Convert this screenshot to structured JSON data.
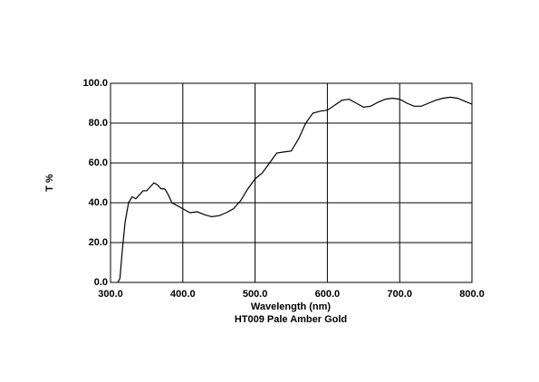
{
  "chart_data": {
    "type": "line",
    "title": "HT009 Pale Amber Gold",
    "xlabel": "Wavelength (nm)",
    "ylabel": "T %",
    "xlim": [
      300,
      800
    ],
    "ylim": [
      0,
      100
    ],
    "xticks": [
      {
        "value": 300,
        "label": "300.0"
      },
      {
        "value": 400,
        "label": "400.0"
      },
      {
        "value": 500,
        "label": "500.0"
      },
      {
        "value": 600,
        "label": "600.0"
      },
      {
        "value": 700,
        "label": "700.0"
      },
      {
        "value": 800,
        "label": "800.0"
      }
    ],
    "yticks": [
      {
        "value": 0,
        "label": "0.0"
      },
      {
        "value": 20,
        "label": "20.0"
      },
      {
        "value": 40,
        "label": "40.0"
      },
      {
        "value": 60,
        "label": "60.0"
      },
      {
        "value": 80,
        "label": "80.0"
      },
      {
        "value": 100,
        "label": "100.0"
      }
    ],
    "grid": true,
    "color": "#000000",
    "x": [
      310,
      313,
      316,
      320,
      325,
      330,
      335,
      340,
      345,
      350,
      355,
      360,
      365,
      370,
      375,
      380,
      385,
      390,
      395,
      400,
      410,
      420,
      430,
      440,
      450,
      460,
      470,
      480,
      490,
      500,
      510,
      520,
      530,
      540,
      550,
      560,
      570,
      580,
      590,
      600,
      610,
      620,
      630,
      640,
      650,
      660,
      670,
      680,
      690,
      700,
      710,
      720,
      730,
      740,
      750,
      760,
      770,
      780,
      790,
      800
    ],
    "values": [
      0,
      2,
      15,
      30,
      40,
      43,
      42,
      44,
      46,
      46,
      48,
      50,
      49,
      47,
      47,
      44,
      40,
      39,
      38,
      37,
      35,
      35.5,
      34,
      33,
      33.5,
      35,
      37,
      41,
      47,
      52,
      55,
      60,
      65,
      65.5,
      66,
      72,
      80,
      85,
      86,
      86.5,
      89,
      91.5,
      92,
      90,
      88,
      88.5,
      90.5,
      92,
      92.5,
      92,
      90,
      88.5,
      88.5,
      90,
      91.5,
      92.5,
      93,
      92.5,
      91,
      89.5
    ]
  }
}
